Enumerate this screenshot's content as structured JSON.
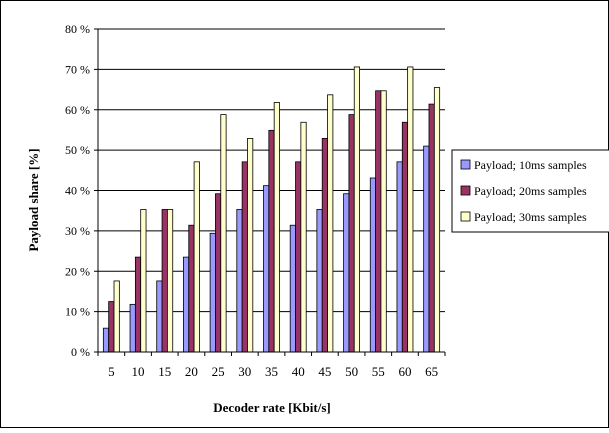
{
  "chart_data": {
    "type": "bar",
    "xlabel": "Decoder rate [Kbit/s]",
    "ylabel": "Payload share [%]",
    "ylim": [
      0,
      80
    ],
    "yticks": [
      "0 %",
      "10 %",
      "20 %",
      "30 %",
      "40 %",
      "50 %",
      "60 %",
      "70 %",
      "80 %"
    ],
    "grid": "horizontal",
    "legend_position": "right",
    "categories": [
      "5",
      "10",
      "15",
      "20",
      "25",
      "30",
      "35",
      "40",
      "45",
      "50",
      "55",
      "60",
      "65"
    ],
    "series": [
      {
        "name": "Payload; 10ms samples",
        "color": "#9999ff",
        "values": [
          5.9,
          11.8,
          17.6,
          23.5,
          29.4,
          35.3,
          41.2,
          31.4,
          35.3,
          39.2,
          43.1,
          47.1,
          51.0
        ]
      },
      {
        "name": "Payload; 20ms samples",
        "color": "#993366",
        "values": [
          12.5,
          23.5,
          35.3,
          31.4,
          39.2,
          47.1,
          54.9,
          47.1,
          52.9,
          58.8,
          64.7,
          56.9,
          61.4
        ]
      },
      {
        "name": "Payload; 30ms samples",
        "color": "#ffffcc",
        "values": [
          17.6,
          35.3,
          35.3,
          47.1,
          58.8,
          52.9,
          61.8,
          56.9,
          63.7,
          70.6,
          64.7,
          70.6,
          65.5
        ]
      }
    ]
  }
}
